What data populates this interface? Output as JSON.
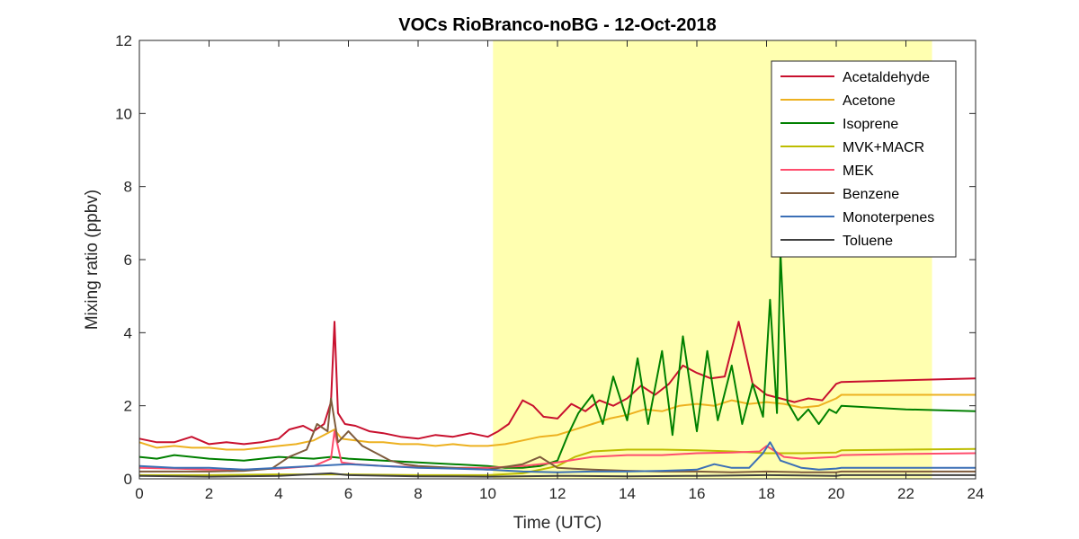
{
  "chart_data": {
    "type": "line",
    "title": "VOCs RioBranco-noBG - 12-Oct-2018",
    "xlabel": "Time (UTC)",
    "ylabel": "Mixing ratio (ppbv)",
    "xlim": [
      0,
      24
    ],
    "ylim": [
      0,
      12
    ],
    "xticks": [
      "0",
      "2",
      "4",
      "6",
      "8",
      "10",
      "12",
      "14",
      "16",
      "18",
      "20",
      "22",
      "24"
    ],
    "yticks": [
      "0",
      "2",
      "4",
      "6",
      "8",
      "10",
      "12"
    ],
    "xtick_values": [
      0,
      2,
      4,
      6,
      8,
      10,
      12,
      14,
      16,
      18,
      20,
      22,
      24
    ],
    "ytick_values": [
      0,
      2,
      4,
      6,
      8,
      10,
      12
    ],
    "grid": false,
    "legend_position": "top-right",
    "shaded_region": {
      "x": [
        10.15,
        22.75
      ],
      "color": "#ffffb0"
    },
    "series": [
      {
        "name": "Acetaldehyde",
        "color": "#c8102e",
        "x": [
          0,
          0.5,
          1,
          1.5,
          2,
          2.5,
          3,
          3.5,
          4,
          4.3,
          4.7,
          5,
          5.3,
          5.5,
          5.6,
          5.7,
          5.9,
          6.2,
          6.6,
          7,
          7.5,
          8,
          8.5,
          9,
          9.5,
          10,
          10.3,
          10.6,
          11,
          11.3,
          11.6,
          12,
          12.4,
          12.8,
          13.2,
          13.6,
          14,
          14.4,
          14.8,
          15.2,
          15.6,
          16,
          16.4,
          16.8,
          17.2,
          17.6,
          18,
          18.4,
          18.8,
          19.2,
          19.6,
          20,
          20.15,
          22,
          24
        ],
        "y": [
          1.1,
          1.0,
          1.0,
          1.15,
          0.95,
          1.0,
          0.95,
          1.0,
          1.1,
          1.35,
          1.45,
          1.3,
          1.5,
          2.1,
          4.3,
          1.8,
          1.5,
          1.45,
          1.3,
          1.25,
          1.15,
          1.1,
          1.2,
          1.15,
          1.25,
          1.15,
          1.3,
          1.5,
          2.15,
          2.0,
          1.7,
          1.65,
          2.05,
          1.85,
          2.15,
          2.0,
          2.2,
          2.55,
          2.3,
          2.6,
          3.1,
          2.9,
          2.75,
          2.8,
          4.3,
          2.6,
          2.3,
          2.2,
          2.1,
          2.2,
          2.15,
          2.6,
          2.65,
          2.7,
          2.75
        ]
      },
      {
        "name": "Acetone",
        "color": "#edb120",
        "x": [
          0,
          0.5,
          1,
          1.5,
          2,
          2.5,
          3,
          3.5,
          4,
          4.5,
          5,
          5.3,
          5.6,
          5.8,
          6.2,
          6.6,
          7,
          7.5,
          8,
          8.5,
          9,
          9.5,
          10,
          10.5,
          11,
          11.5,
          12,
          12.5,
          13,
          13.5,
          14,
          14.5,
          15,
          15.5,
          16,
          16.5,
          17,
          17.5,
          18,
          18.5,
          19,
          19.5,
          20,
          20.15,
          22,
          24
        ],
        "y": [
          1.0,
          0.85,
          0.9,
          0.85,
          0.85,
          0.8,
          0.8,
          0.85,
          0.9,
          0.95,
          1.05,
          1.2,
          1.35,
          1.1,
          1.05,
          1.0,
          1.0,
          0.95,
          0.95,
          0.9,
          0.95,
          0.9,
          0.9,
          0.95,
          1.05,
          1.15,
          1.2,
          1.35,
          1.5,
          1.65,
          1.75,
          1.9,
          1.85,
          2.0,
          2.05,
          2.0,
          2.15,
          2.05,
          2.1,
          2.05,
          1.95,
          2.0,
          2.2,
          2.3,
          2.3,
          2.3
        ]
      },
      {
        "name": "Isoprene",
        "color": "#008000",
        "x": [
          0,
          0.5,
          1,
          2,
          3,
          4,
          5,
          5.5,
          6,
          7,
          8,
          9,
          10,
          10.5,
          11,
          11.5,
          12,
          12.3,
          12.6,
          13,
          13.3,
          13.6,
          14,
          14.3,
          14.6,
          15,
          15.3,
          15.6,
          16,
          16.3,
          16.6,
          17,
          17.3,
          17.6,
          17.9,
          18.1,
          18.3,
          18.4,
          18.6,
          18.9,
          19.2,
          19.5,
          19.8,
          20,
          20.15,
          22,
          24
        ],
        "y": [
          0.6,
          0.55,
          0.65,
          0.55,
          0.5,
          0.6,
          0.55,
          0.6,
          0.55,
          0.5,
          0.45,
          0.4,
          0.35,
          0.3,
          0.3,
          0.35,
          0.5,
          1.2,
          1.8,
          2.3,
          1.5,
          2.8,
          1.6,
          3.3,
          1.5,
          3.5,
          1.2,
          3.9,
          1.3,
          3.5,
          1.6,
          3.1,
          1.5,
          2.6,
          1.7,
          4.9,
          1.8,
          6.2,
          2.1,
          1.6,
          1.9,
          1.5,
          1.9,
          1.8,
          2.0,
          1.9,
          1.85
        ]
      },
      {
        "name": "MVK+MACR",
        "color": "#bdbd00",
        "x": [
          0,
          2,
          4,
          6,
          8,
          10,
          11,
          12,
          12.5,
          13,
          14,
          15,
          16,
          17,
          18,
          19,
          20,
          20.15,
          22,
          24
        ],
        "y": [
          0.1,
          0.1,
          0.12,
          0.12,
          0.1,
          0.1,
          0.15,
          0.35,
          0.6,
          0.75,
          0.8,
          0.8,
          0.78,
          0.75,
          0.7,
          0.7,
          0.72,
          0.78,
          0.8,
          0.82
        ]
      },
      {
        "name": "MEK",
        "color": "#ff4d6d",
        "x": [
          0,
          1,
          2,
          3,
          4,
          5,
          5.5,
          5.6,
          5.8,
          6.2,
          7,
          8,
          9,
          10,
          11,
          12,
          13,
          14,
          15,
          16,
          17,
          17.8,
          18,
          18.5,
          19,
          20,
          20.15,
          22,
          24
        ],
        "y": [
          0.3,
          0.28,
          0.25,
          0.25,
          0.28,
          0.35,
          0.55,
          1.3,
          0.45,
          0.4,
          0.35,
          0.32,
          0.3,
          0.3,
          0.35,
          0.45,
          0.6,
          0.65,
          0.65,
          0.7,
          0.72,
          0.75,
          0.9,
          0.6,
          0.55,
          0.6,
          0.65,
          0.68,
          0.7
        ]
      },
      {
        "name": "Benzene",
        "color": "#7e5b3c",
        "x": [
          0,
          1,
          2,
          3,
          3.8,
          4.3,
          4.8,
          5.1,
          5.4,
          5.5,
          5.7,
          6.0,
          6.4,
          6.8,
          7.2,
          7.6,
          8,
          9,
          10,
          11,
          11.5,
          12,
          13,
          14,
          15,
          16,
          17,
          18,
          19,
          20,
          20.15,
          22,
          24
        ],
        "y": [
          0.2,
          0.2,
          0.2,
          0.22,
          0.28,
          0.6,
          0.8,
          1.5,
          1.3,
          2.2,
          1.0,
          1.3,
          0.9,
          0.7,
          0.5,
          0.4,
          0.35,
          0.3,
          0.25,
          0.4,
          0.6,
          0.3,
          0.25,
          0.22,
          0.2,
          0.2,
          0.18,
          0.2,
          0.18,
          0.18,
          0.2,
          0.2,
          0.2
        ]
      },
      {
        "name": "Monoterpenes",
        "color": "#3b6fb6",
        "x": [
          0,
          1,
          2,
          3,
          4,
          5,
          6,
          7,
          8,
          9,
          10,
          11,
          12,
          13,
          14,
          15,
          16,
          16.5,
          17,
          17.5,
          17.9,
          18.1,
          18.4,
          19,
          19.5,
          20,
          20.15,
          22,
          24
        ],
        "y": [
          0.35,
          0.3,
          0.3,
          0.25,
          0.3,
          0.35,
          0.4,
          0.35,
          0.3,
          0.28,
          0.25,
          0.2,
          0.18,
          0.2,
          0.2,
          0.22,
          0.25,
          0.4,
          0.3,
          0.3,
          0.7,
          1.0,
          0.5,
          0.3,
          0.25,
          0.28,
          0.3,
          0.3,
          0.3
        ]
      },
      {
        "name": "Toluene",
        "color": "#404040",
        "x": [
          0,
          2,
          4,
          5.5,
          6,
          8,
          10,
          12,
          14,
          16,
          18,
          20,
          20.15,
          22,
          24
        ],
        "y": [
          0.08,
          0.06,
          0.08,
          0.15,
          0.1,
          0.07,
          0.06,
          0.08,
          0.07,
          0.08,
          0.1,
          0.08,
          0.1,
          0.1,
          0.1
        ]
      }
    ]
  }
}
